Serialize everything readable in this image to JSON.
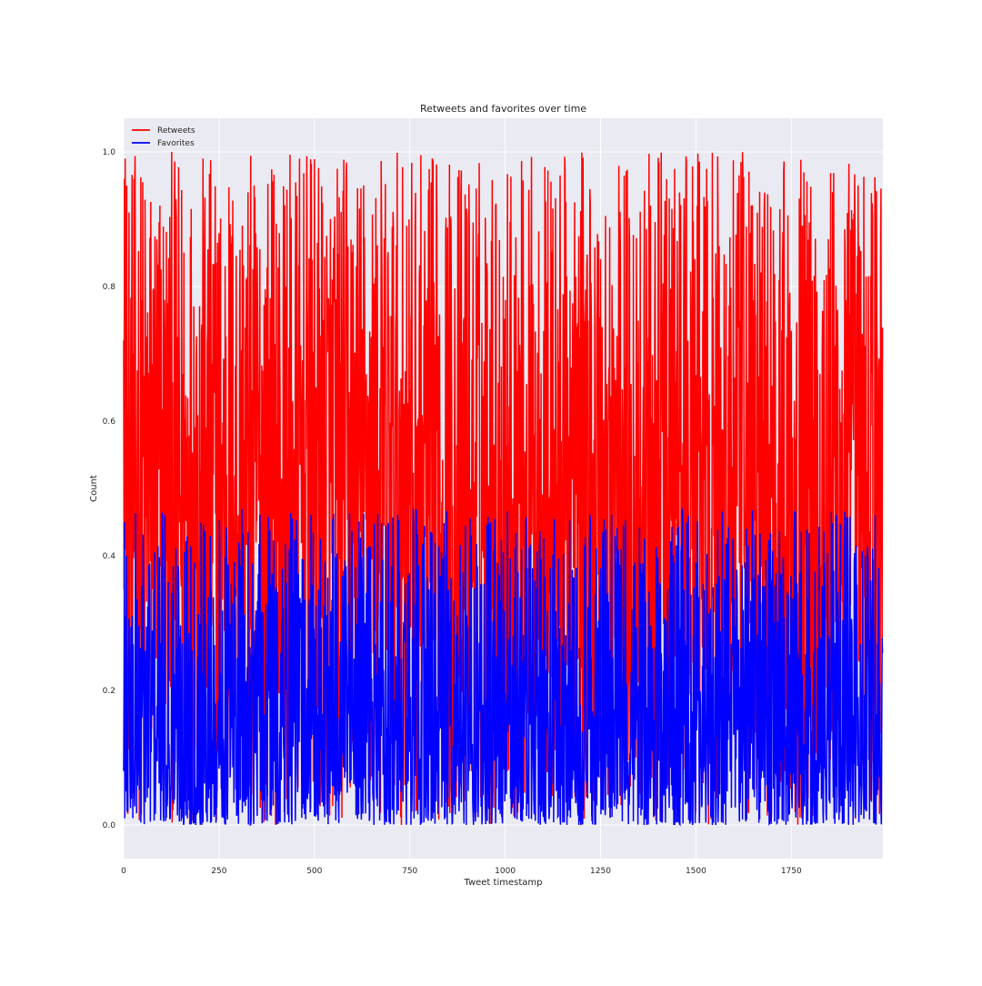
{
  "chart_data": {
    "type": "line",
    "title": "Retweets and favorites over time",
    "xlabel": "Tweet timestamp",
    "ylabel": "Count",
    "xlim": [
      0,
      1990
    ],
    "ylim": [
      -0.05,
      1.05
    ],
    "grid": true,
    "style": "seaborn-darkgrid",
    "legend_position": "top-left",
    "x_ticks": [
      0,
      250,
      500,
      750,
      1000,
      1250,
      1500,
      1750
    ],
    "x_tick_labels": [
      "0",
      "250",
      "500",
      "750",
      "1000",
      "1250",
      "1500",
      "1750"
    ],
    "y_ticks": [
      0.0,
      0.2,
      0.4,
      0.6,
      0.8,
      1.0
    ],
    "y_tick_labels": [
      "0.0",
      "0.2",
      "0.4",
      "0.6",
      "0.8",
      "1.0"
    ],
    "series": [
      {
        "name": "Retweets",
        "color": "#ff0000",
        "n_points": 1990,
        "distribution": "uniform noise",
        "value_range": [
          0.0,
          1.0
        ],
        "sample_values": [
          0.72,
          0.35,
          0.96,
          0.57,
          0.99,
          0.41,
          0.88,
          0.12,
          0.95,
          0.63
        ]
      },
      {
        "name": "Favorites",
        "color": "#0000ff",
        "n_points": 1990,
        "distribution": "skewed low noise",
        "value_range": [
          0.0,
          0.47
        ],
        "sample_values": [
          0.08,
          0.22,
          0.45,
          0.01,
          0.18,
          0.31,
          0.05,
          0.4,
          0.12,
          0.02
        ]
      }
    ]
  },
  "colors": {
    "plot_background": "#eaeaf2",
    "grid": "#ffffff",
    "retweets": "#ff0000",
    "favorites": "#0000ff"
  }
}
